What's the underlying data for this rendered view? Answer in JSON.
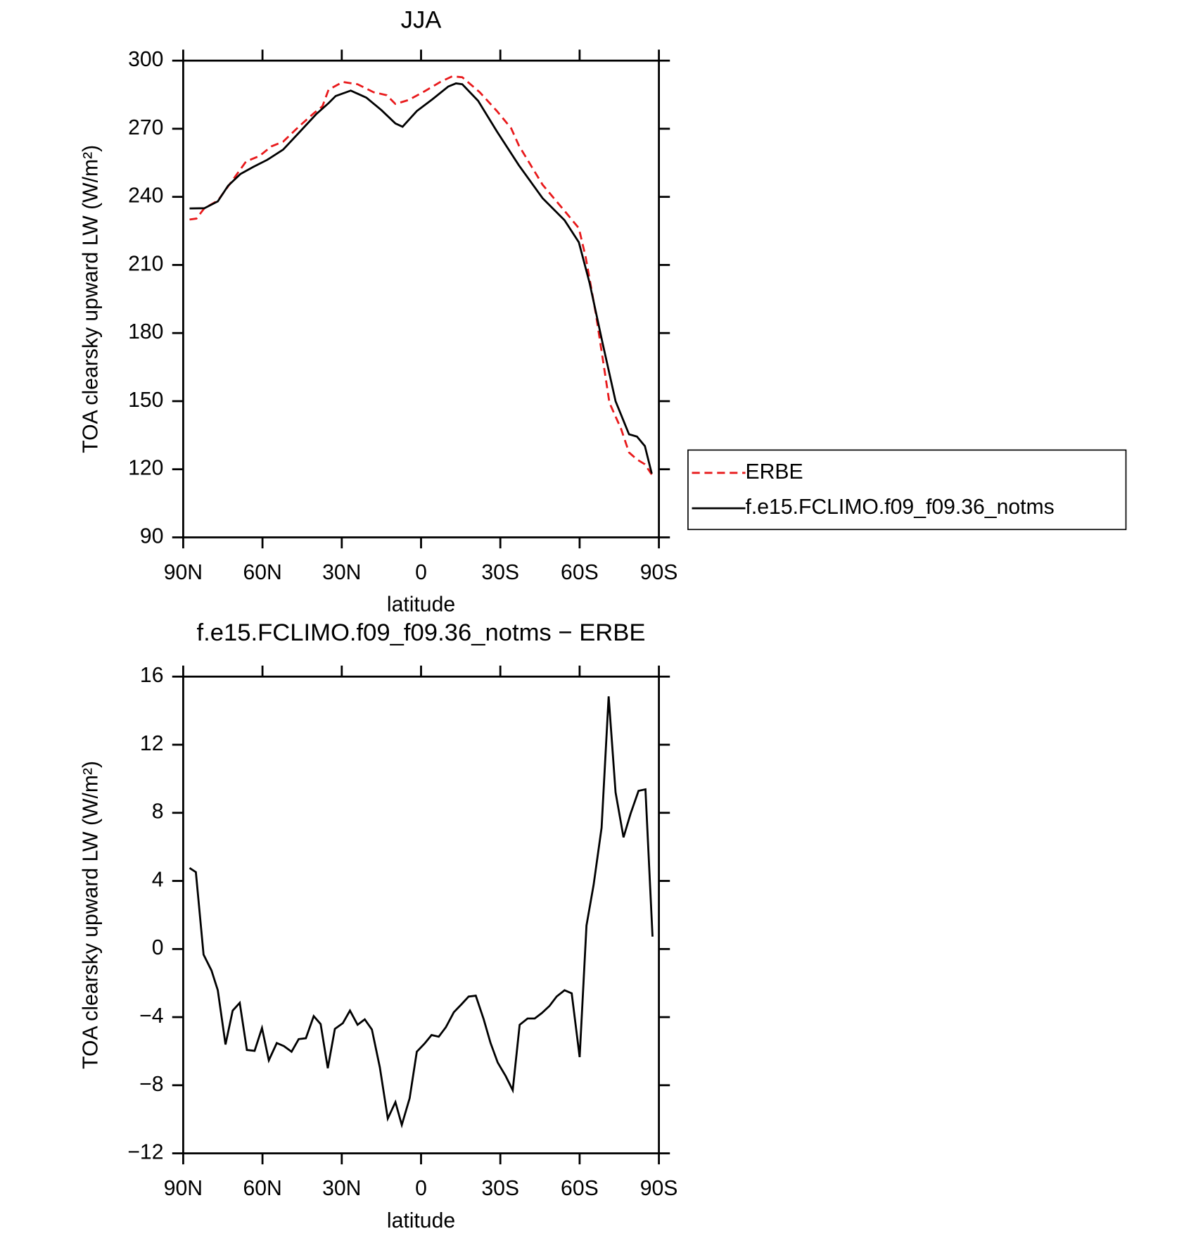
{
  "chart_data": [
    {
      "type": "line",
      "title": "JJA",
      "xlabel": "latitude",
      "ylabel": "TOA clearsky upward LW (W/m²)",
      "xlim": [
        90,
        -90
      ],
      "ylim": [
        90,
        300
      ],
      "xticks": [
        {
          "value": 90,
          "label": "90N"
        },
        {
          "value": 60,
          "label": "60N"
        },
        {
          "value": 30,
          "label": "30N"
        },
        0,
        {
          "value": -30,
          "label": "30S"
        },
        {
          "value": -60,
          "label": "60S"
        },
        {
          "value": -90,
          "label": "90S"
        }
      ],
      "yticks": [
        90,
        120,
        150,
        180,
        210,
        240,
        270,
        300
      ],
      "legend": "right",
      "series": [
        {
          "name": "ERBE",
          "color": "#e8191b",
          "dash": "dashed",
          "x": [
            87.6,
            85,
            82,
            76.9,
            73,
            66.2,
            61.1,
            56.7,
            52.2,
            46,
            40.3,
            37.3,
            35,
            29.6,
            24,
            18,
            13,
            9.7,
            4.6,
            -1.3,
            -7.3,
            -11.8,
            -15.6,
            -22.2,
            -28.7,
            -34.1,
            -37,
            -46,
            -54.3,
            -59.7,
            -62.3,
            -66.2,
            -71.3,
            -75.7,
            -78.7,
            -81.7,
            -84.7,
            -87.3
          ],
          "values": [
            230,
            230.4,
            235,
            238.3,
            244.6,
            255.6,
            258,
            262.2,
            264.3,
            271.2,
            277.1,
            279.9,
            287.2,
            290.6,
            289.6,
            286.1,
            284.8,
            280.9,
            282.7,
            286.5,
            290.6,
            293.1,
            292.7,
            286.1,
            277.8,
            270.2,
            262.6,
            245.3,
            233.8,
            226.2,
            213.4,
            188.1,
            149.3,
            137.8,
            127.4,
            124.3,
            122.2,
            117.7
          ]
        },
        {
          "name": "f.e15.FCLIMO.f09_f09.36_notms",
          "color": "#000000",
          "dash": "solid",
          "x": [
            87.6,
            82,
            76.9,
            73,
            68.3,
            63.5,
            58.2,
            52.2,
            46,
            39.7,
            35,
            32.3,
            26.6,
            20.7,
            15,
            9.7,
            7,
            1.6,
            -4.3,
            -10.3,
            -13.2,
            -15.6,
            -21.6,
            -28.7,
            -37,
            -46,
            -54.3,
            -59.7,
            -63.8,
            -68.6,
            -73.6,
            -78.7,
            -81.7,
            -84.7,
            -87.3
          ],
          "values": [
            234.9,
            235,
            238,
            244.9,
            250.1,
            253.2,
            256.3,
            260.8,
            268.5,
            276.4,
            281.3,
            284.4,
            286.8,
            283.7,
            278.2,
            272.3,
            270.9,
            277.8,
            283,
            288.6,
            290,
            289.6,
            282.3,
            268.8,
            253.9,
            239.4,
            229.7,
            220,
            202,
            176,
            150,
            135.4,
            134.4,
            130.2,
            118.1
          ]
        }
      ]
    },
    {
      "type": "line",
      "title": "f.e15.FCLIMO.f09_f09.36_notms − ERBE",
      "xlabel": "latitude",
      "ylabel": "TOA clearsky upward LW (W/m²)",
      "xlim": [
        90,
        -90
      ],
      "ylim": [
        -12,
        16
      ],
      "xticks": [
        {
          "value": 90,
          "label": "90N"
        },
        {
          "value": 60,
          "label": "60N"
        },
        {
          "value": 30,
          "label": "30N"
        },
        0,
        {
          "value": -30,
          "label": "30S"
        },
        {
          "value": -60,
          "label": "60S"
        },
        {
          "value": -90,
          "label": "90S"
        }
      ],
      "yticks": [
        {
          "value": -12,
          "label": "−12"
        },
        {
          "value": -8,
          "label": "−8"
        },
        {
          "value": -4,
          "label": "−4"
        },
        0,
        4,
        8,
        12,
        16
      ],
      "series": [
        {
          "color": "#000000",
          "dash": "solid",
          "x": [
            87.6,
            85.2,
            82.3,
            79.3,
            76.9,
            74,
            71.3,
            68.6,
            65.9,
            63,
            60.2,
            57.6,
            54.6,
            51.9,
            49,
            46.3,
            43.6,
            40.6,
            38,
            35.3,
            32.6,
            29.6,
            26.9,
            24,
            21.3,
            18.6,
            15.6,
            12.6,
            9.7,
            7.3,
            4.3,
            1.6,
            -1.3,
            -4,
            -6.7,
            -9.4,
            -12.4,
            -15.3,
            -18,
            -20.7,
            -23.7,
            -26.3,
            -29,
            -32,
            -34.7,
            -37.3,
            -40.3,
            -43,
            -45.7,
            -48.6,
            -51.3,
            -54.3,
            -57,
            -60,
            -62.6,
            -65.3,
            -68.3,
            -71,
            -73.6,
            -76.6,
            -79.3,
            -82.3,
            -84.9,
            -87.6
          ],
          "values": [
            4.76,
            4.52,
            -0.33,
            -1.26,
            -2.42,
            -5.61,
            -3.62,
            -3.16,
            -5.93,
            -5.98,
            -4.64,
            -6.54,
            -5.52,
            -5.7,
            -6.03,
            -5.29,
            -5.24,
            -3.94,
            -4.41,
            -7,
            -4.69,
            -4.36,
            -3.62,
            -4.45,
            -4.13,
            -4.73,
            -6.95,
            -9.96,
            -8.99,
            -10.33,
            -8.76,
            -6.03,
            -5.56,
            -5.05,
            -5.15,
            -4.59,
            -3.71,
            -3.25,
            -2.79,
            -2.74,
            -4.13,
            -5.52,
            -6.67,
            -7.46,
            -8.29,
            -4.45,
            -4.08,
            -4.08,
            -3.76,
            -3.34,
            -2.79,
            -2.42,
            -2.6,
            -6.35,
            1.38,
            3.78,
            7.12,
            14.84,
            9.2,
            6.56,
            7.95,
            9.29,
            9.38,
            0.73
          ]
        }
      ]
    }
  ]
}
